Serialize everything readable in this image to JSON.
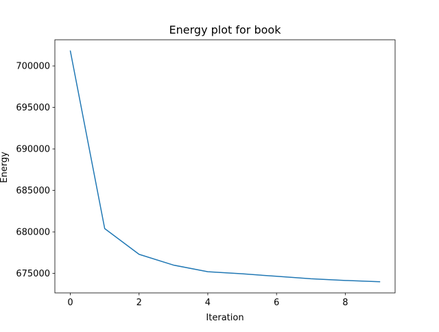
{
  "chart_data": {
    "type": "line",
    "title": "Energy plot for book",
    "xlabel": "Iteration",
    "ylabel": "Energy",
    "x": [
      0,
      1,
      2,
      3,
      4,
      5,
      6,
      7,
      8,
      9
    ],
    "series": [
      {
        "values": [
          701800,
          680400,
          677300,
          676000,
          675200,
          674950,
          674650,
          674350,
          674150,
          674000
        ],
        "color": "#1f77b4"
      }
    ],
    "xlim": [
      -0.45,
      9.45
    ],
    "ylim": [
      672650,
      703150
    ],
    "xticks": [
      0,
      2,
      4,
      6,
      8
    ],
    "xtick_labels": [
      "0",
      "2",
      "4",
      "6",
      "8"
    ],
    "yticks": [
      675000,
      680000,
      685000,
      690000,
      695000,
      700000
    ],
    "ytick_labels": [
      "675000",
      "680000",
      "685000",
      "690000",
      "695000",
      "700000"
    ],
    "grid": false,
    "legend": "none"
  }
}
